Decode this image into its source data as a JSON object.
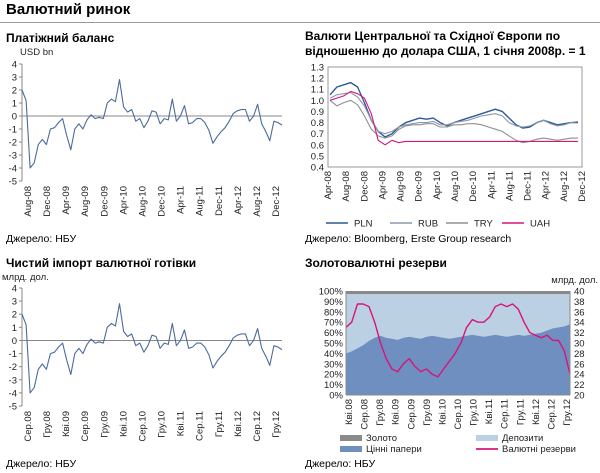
{
  "page_title": "Валютний ринок",
  "colors": {
    "blue": "#4a6b9c",
    "gray": "#8c8c8c",
    "magenta": "#d8147a",
    "uah": "#d8147a",
    "gold": "#8a8a8a",
    "deposits": "#bcd0e4",
    "securities": "#6e8fbf"
  },
  "chart_data": [
    {
      "type": "line",
      "title": "Платіжний баланс",
      "unit": "USD bn",
      "source": "Джерело: НБУ",
      "ylim": [
        -5,
        4
      ],
      "yticks": [
        4,
        3,
        2,
        1,
        0,
        -1,
        -2,
        -3,
        -4,
        -5
      ],
      "xtick_labels": [
        "Aug-08",
        "Dec-08",
        "Apr-09",
        "Aug-09",
        "Dec-09",
        "Apr-10",
        "Aug-10",
        "Dec-10",
        "Apr-11",
        "Aug-11",
        "Dec-11",
        "Apr-12",
        "Aug-12",
        "Dec-12"
      ],
      "series": [
        {
          "color": "#4a6b9c",
          "values": [
            2.0,
            1.2,
            -4.0,
            -3.6,
            -2.2,
            -1.8,
            -2.2,
            -1.0,
            -0.9,
            -0.5,
            -0.2,
            -1.5,
            -2.6,
            -1.0,
            -0.6,
            -1.0,
            -0.3,
            0.1,
            -0.2,
            -0.1,
            -0.2,
            1.0,
            1.3,
            1.1,
            2.8,
            0.7,
            0.3,
            0.5,
            -0.4,
            -0.2,
            -0.9,
            -0.4,
            0.4,
            0.3,
            -0.6,
            -0.2,
            -0.3,
            1.3,
            -0.4,
            0.0,
            0.8,
            -0.6,
            -0.5,
            -0.2,
            -0.2,
            -0.5,
            -1.1,
            -2.1,
            -1.6,
            -1.2,
            -0.9,
            -0.4,
            0.2,
            0.4,
            0.5,
            0.5,
            -0.4,
            0.0,
            0.9,
            -0.6,
            -1.2,
            -1.9,
            -0.4,
            -0.5,
            -0.7
          ]
        }
      ]
    },
    {
      "type": "line",
      "title": "Валюти Центральної та Східної Європи по відношенню до долара США, 1 січня 2008р. = 1",
      "title_lines": [
        "Валюти Центральної та Східної Європи по",
        "відношенню до долара США, 1 січня 2008р. = 1"
      ],
      "source": "Джерело: Bloomberg, Erste Group research",
      "ylim": [
        0.4,
        1.3
      ],
      "yticks": [
        1.3,
        1.2,
        1.1,
        1.0,
        0.9,
        0.8,
        0.7,
        0.6,
        0.5,
        0.4
      ],
      "xtick_labels": [
        "Apr-08",
        "Aug-08",
        "Dec-08",
        "Apr-09",
        "Aug-09",
        "Dec-09",
        "Apr-10",
        "Aug-10",
        "Dec-10",
        "Apr-11",
        "Aug-11",
        "Dec-11",
        "Apr-12",
        "Aug-12",
        "Dec-12"
      ],
      "legend": [
        "PLN",
        "RUB",
        "TRY",
        "UAH"
      ],
      "series": [
        {
          "name": "PLN",
          "color": "#2e5a99",
          "values": [
            1.05,
            1.12,
            1.14,
            1.16,
            1.12,
            0.98,
            0.82,
            0.72,
            0.67,
            0.7,
            0.76,
            0.8,
            0.82,
            0.84,
            0.83,
            0.84,
            0.8,
            0.77,
            0.8,
            0.82,
            0.84,
            0.86,
            0.88,
            0.9,
            0.92,
            0.9,
            0.84,
            0.78,
            0.75,
            0.76,
            0.8,
            0.82,
            0.8,
            0.78,
            0.79,
            0.8,
            0.8
          ]
        },
        {
          "name": "RUB",
          "color": "#8b99ad",
          "values": [
            1.02,
            1.05,
            1.06,
            1.07,
            1.03,
            0.95,
            0.82,
            0.72,
            0.7,
            0.72,
            0.76,
            0.78,
            0.79,
            0.8,
            0.8,
            0.81,
            0.78,
            0.78,
            0.8,
            0.81,
            0.82,
            0.84,
            0.86,
            0.87,
            0.88,
            0.86,
            0.8,
            0.77,
            0.76,
            0.77,
            0.8,
            0.82,
            0.79,
            0.77,
            0.78,
            0.8,
            0.81
          ]
        },
        {
          "name": "TRY",
          "color": "#909090",
          "values": [
            1.0,
            0.95,
            0.98,
            1.0,
            0.96,
            0.86,
            0.74,
            0.68,
            0.66,
            0.68,
            0.74,
            0.77,
            0.78,
            0.78,
            0.79,
            0.79,
            0.76,
            0.76,
            0.78,
            0.78,
            0.79,
            0.79,
            0.78,
            0.76,
            0.74,
            0.72,
            0.68,
            0.64,
            0.62,
            0.63,
            0.65,
            0.66,
            0.65,
            0.64,
            0.65,
            0.66,
            0.66
          ]
        },
        {
          "name": "UAH",
          "color": "#d8147a",
          "values": [
            1.0,
            1.02,
            1.04,
            1.08,
            1.06,
            1.02,
            0.88,
            0.64,
            0.6,
            0.64,
            0.62,
            0.63,
            0.63,
            0.63,
            0.63,
            0.63,
            0.63,
            0.63,
            0.63,
            0.63,
            0.63,
            0.63,
            0.63,
            0.63,
            0.63,
            0.63,
            0.63,
            0.63,
            0.63,
            0.63,
            0.63,
            0.63,
            0.63,
            0.63,
            0.63,
            0.63,
            0.63
          ]
        }
      ]
    },
    {
      "type": "line",
      "title": "Чистий імпорт валютної готівки",
      "unit": "млрд. дол.",
      "source": "Джерело: НБУ",
      "ylim": [
        -5,
        4
      ],
      "yticks": [
        4,
        3,
        2,
        1,
        0,
        -1,
        -2,
        -3,
        -4,
        -5
      ],
      "xtick_labels": [
        "Сер.08",
        "Гру.08",
        "Кві.09",
        "Сер.09",
        "Гру.09",
        "Кві.10",
        "Сер.10",
        "Гру.10",
        "Кві.11",
        "Сер.11",
        "Гру.11",
        "Кві.12",
        "Сер.12",
        "Гру.12"
      ],
      "series": [
        {
          "color": "#4a6b9c",
          "values": [
            2.0,
            1.2,
            -4.0,
            -3.6,
            -2.2,
            -1.8,
            -2.2,
            -1.0,
            -0.9,
            -0.5,
            -0.2,
            -1.5,
            -2.6,
            -1.0,
            -0.6,
            -1.0,
            -0.3,
            0.1,
            -0.2,
            -0.1,
            -0.2,
            1.0,
            1.3,
            1.1,
            2.8,
            0.7,
            0.3,
            0.5,
            -0.4,
            -0.2,
            -0.9,
            -0.4,
            0.4,
            0.3,
            -0.6,
            -0.2,
            -0.3,
            1.3,
            -0.4,
            0.0,
            0.8,
            -0.6,
            -0.5,
            -0.2,
            -0.2,
            -0.5,
            -1.1,
            -2.1,
            -1.6,
            -1.2,
            -0.9,
            -0.4,
            0.2,
            0.4,
            0.5,
            0.5,
            -0.4,
            0.0,
            0.9,
            -0.6,
            -1.2,
            -1.9,
            -0.4,
            -0.5,
            -0.7
          ]
        }
      ]
    },
    {
      "type": "area",
      "title": "Золотовалютні резерви",
      "right_unit": "млрд. дол.",
      "source": "Джерело: НБУ",
      "ylim": [
        0,
        100
      ],
      "yticks_left": [
        "100%",
        "90%",
        "80%",
        "70%",
        "60%",
        "50%",
        "40%",
        "30%",
        "20%",
        "10%",
        "0%"
      ],
      "ylim_right": [
        20,
        40
      ],
      "yticks_right": [
        40,
        38,
        36,
        34,
        32,
        30,
        28,
        26,
        24,
        22,
        20
      ],
      "xtick_labels": [
        "Кві.08",
        "Сер.08",
        "Гру.08",
        "Кві.09",
        "Сер.09",
        "Гру.09",
        "Кві.10",
        "Сер.10",
        "Гру.10",
        "Кві.11",
        "Сер.11",
        "Гру.11",
        "Кві.12",
        "Сер.12",
        "Гру.12"
      ],
      "legend": [
        "Золото",
        "Депозити",
        "Цінні папери",
        "Валютні резерви"
      ],
      "series": [
        {
          "name": "Цінні папери",
          "color": "#6e8fbf",
          "values": [
            40,
            42,
            45,
            48,
            52,
            55,
            57,
            55,
            54,
            53,
            55,
            56,
            55,
            54,
            56,
            57,
            56,
            55,
            54,
            55,
            56,
            57,
            58,
            57,
            56,
            57,
            58,
            57,
            56,
            57,
            58,
            57,
            58,
            59,
            60,
            62,
            64,
            65,
            66,
            68
          ]
        },
        {
          "name": "Депозити",
          "color": "#bcd0e4",
          "values": [
            57,
            55,
            52,
            49,
            45,
            42,
            40,
            42,
            43,
            44,
            42,
            41,
            42,
            43,
            41,
            40,
            41,
            42,
            43,
            42,
            41,
            40,
            39,
            40,
            41,
            40,
            39,
            40,
            41,
            40,
            39,
            40,
            39,
            38,
            37,
            35,
            33,
            32,
            31,
            29
          ]
        },
        {
          "name": "Золото",
          "color": "#8a8a8a",
          "values": [
            3,
            3,
            3,
            3,
            3,
            3,
            3,
            3,
            3,
            3,
            3,
            3,
            3,
            3,
            3,
            3,
            3,
            3,
            3,
            3,
            3,
            3,
            3,
            3,
            3,
            3,
            3,
            3,
            3,
            3,
            3,
            3,
            3,
            3,
            3,
            3,
            3,
            3,
            3,
            3
          ]
        },
        {
          "name": "Валютні резерви",
          "color": "#d8147a",
          "axis": "right",
          "values": [
            33,
            34,
            37.5,
            37.5,
            37,
            34,
            30,
            27,
            25,
            24.5,
            26,
            27,
            25.5,
            24.5,
            25,
            24,
            23.5,
            25,
            26.5,
            28,
            30,
            33,
            34.5,
            34,
            34,
            35,
            37,
            37.5,
            37,
            37.5,
            36.5,
            34,
            32,
            31.5,
            31,
            31.5,
            30.5,
            30.5,
            28.5,
            24
          ]
        }
      ]
    }
  ]
}
